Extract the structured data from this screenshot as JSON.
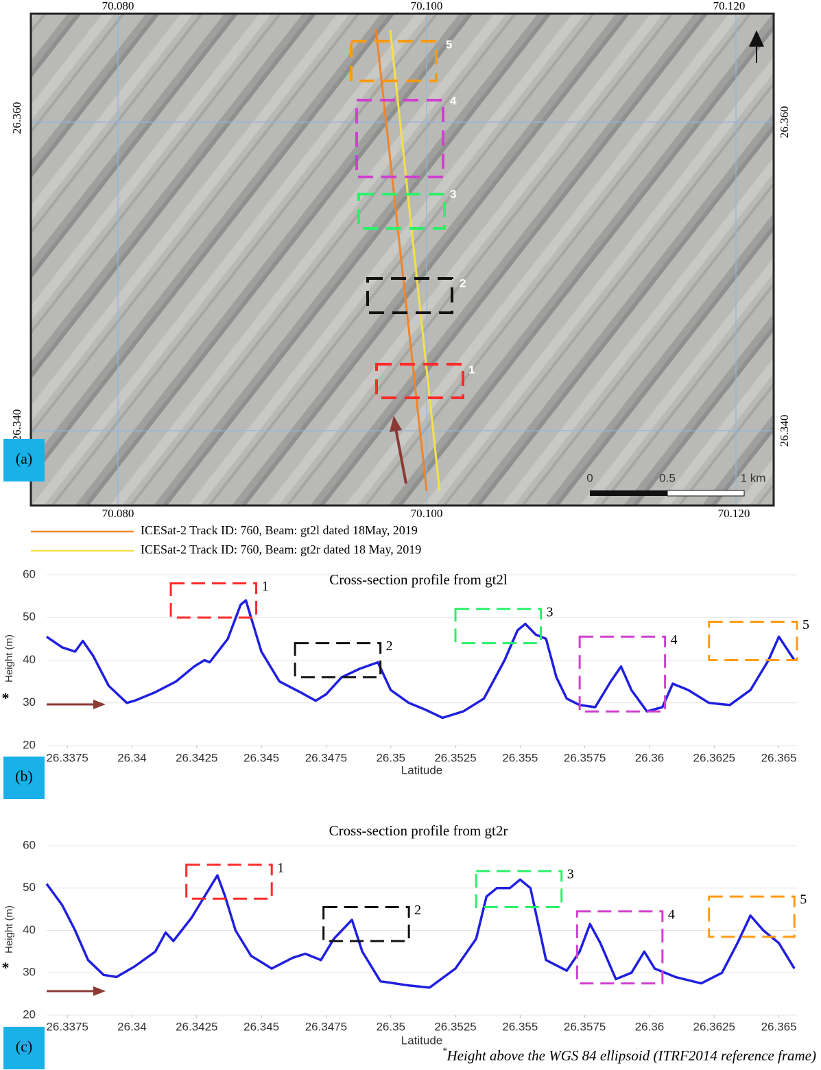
{
  "map": {
    "top_labels": [
      "70.080",
      "70.100",
      "70.120"
    ],
    "bottom_labels": [
      "70.080",
      "70.100",
      "70.120"
    ],
    "left_labels": [
      "26.360",
      "26.340"
    ],
    "right_labels": [
      "26.360",
      "26.340"
    ],
    "box_labels": [
      "5",
      "4",
      "3",
      "2",
      "1"
    ],
    "scale_labels": [
      "0",
      "0.5",
      "1 km"
    ],
    "panel_label": "(a)"
  },
  "legend": [
    {
      "name": "ICESat-2 Track ID: 760, Beam: gt2l dated 18May, 2019",
      "color": "#f0842a"
    },
    {
      "name": "ICESat-2 Track ID: 760, Beam: gt2r dated 18 May, 2019",
      "color": "#f5e04a"
    }
  ],
  "chart_data": [
    {
      "type": "line",
      "title": "Cross-section profile from gt2l",
      "panel_label": "(b)",
      "x_label": "Latitude",
      "y_label": "Height (m)",
      "y_label_mark": "*",
      "color": "#1f1fe0",
      "grid": true,
      "xlim": [
        26.3367,
        26.3657
      ],
      "ylim": [
        20,
        60
      ],
      "xticks": [
        26.3375,
        26.34,
        26.3425,
        26.345,
        26.3475,
        26.35,
        26.3525,
        26.355,
        26.3575,
        26.36,
        26.3625,
        26.365
      ],
      "yticks": [
        20,
        30,
        40,
        50,
        60
      ],
      "x": [
        26.3367,
        26.3373,
        26.3378,
        26.3381,
        26.3385,
        26.3391,
        26.3398,
        26.3401,
        26.3409,
        26.3417,
        26.3424,
        26.3428,
        26.343,
        26.3437,
        26.3442,
        26.3444,
        26.3446,
        26.345,
        26.3457,
        26.3465,
        26.3471,
        26.3475,
        26.3481,
        26.3488,
        26.3495,
        26.35,
        26.3507,
        26.3513,
        26.352,
        26.3528,
        26.3536,
        26.3544,
        26.3549,
        26.3552,
        26.3556,
        26.356,
        26.3564,
        26.3568,
        26.3573,
        26.3579,
        26.3585,
        26.3589,
        26.3593,
        26.3599,
        26.3605,
        26.3609,
        26.3615,
        26.3623,
        26.3631,
        26.3639,
        26.3646,
        26.365,
        26.3656
      ],
      "values": [
        45.5,
        43,
        42,
        44.5,
        41,
        34,
        30,
        30.5,
        32.5,
        35,
        38.5,
        40,
        39.5,
        45,
        53,
        54,
        50,
        42,
        35,
        32.5,
        30.5,
        32,
        36,
        38,
        39.5,
        33,
        30,
        28.5,
        26.5,
        28,
        31,
        40,
        47,
        48.5,
        46,
        45,
        36,
        31,
        29.5,
        29,
        35,
        38.5,
        33,
        28,
        29,
        34.5,
        33,
        30,
        29.5,
        33,
        40,
        45.5,
        40
      ],
      "boxes": [
        {
          "label": "1",
          "color": "#ff2a2a",
          "xlim": [
            26.3415,
            26.3448
          ],
          "ylim": [
            50,
            58
          ]
        },
        {
          "label": "2",
          "color": "#111111",
          "xlim": [
            26.3463,
            26.3496
          ],
          "ylim": [
            36,
            44
          ]
        },
        {
          "label": "3",
          "color": "#2af06a",
          "xlim": [
            26.3525,
            26.3558
          ],
          "ylim": [
            44,
            52
          ]
        },
        {
          "label": "4",
          "color": "#d040d0",
          "xlim": [
            26.3573,
            26.3606
          ],
          "ylim": [
            28,
            45.5
          ]
        },
        {
          "label": "5",
          "color": "#ff9a10",
          "xlim": [
            26.3623,
            26.3657
          ],
          "ylim": [
            40,
            49
          ]
        }
      ]
    },
    {
      "type": "line",
      "title": "Cross-section profile from gt2r",
      "panel_label": "(c)",
      "x_label": "Latitude",
      "y_label": "Height (m)",
      "y_label_mark": "*",
      "color": "#1f1fe0",
      "grid": true,
      "xlim": [
        26.3367,
        26.3657
      ],
      "ylim": [
        20,
        60
      ],
      "xticks": [
        26.3375,
        26.34,
        26.3425,
        26.345,
        26.3475,
        26.35,
        26.3525,
        26.355,
        26.3575,
        26.36,
        26.3625,
        26.365
      ],
      "yticks": [
        20,
        30,
        40,
        50,
        60
      ],
      "x": [
        26.3367,
        26.3373,
        26.3378,
        26.3383,
        26.3389,
        26.3394,
        26.3401,
        26.3409,
        26.3413,
        26.3416,
        26.3423,
        26.3428,
        26.3433,
        26.3436,
        26.344,
        26.3446,
        26.3454,
        26.3462,
        26.3467,
        26.3473,
        26.3478,
        26.3485,
        26.3489,
        26.3496,
        26.3507,
        26.3515,
        26.3525,
        26.3533,
        26.3537,
        26.3541,
        26.3546,
        26.355,
        26.3554,
        26.356,
        26.3568,
        26.3573,
        26.3577,
        26.3581,
        26.3587,
        26.3593,
        26.3598,
        26.3602,
        26.361,
        26.362,
        26.3628,
        26.3634,
        26.3639,
        26.3644,
        26.365,
        26.3656
      ],
      "values": [
        51,
        46,
        40,
        33,
        29.5,
        29,
        31.5,
        35,
        39.5,
        37.5,
        43,
        48,
        53,
        48,
        40,
        34,
        31,
        33.5,
        34.5,
        33,
        38,
        42.5,
        35,
        28,
        27,
        26.5,
        31,
        38,
        48,
        50,
        50,
        52,
        50,
        33,
        30.5,
        35,
        41.5,
        37,
        28.5,
        30,
        35,
        31,
        29,
        27.5,
        30,
        37,
        43.5,
        40,
        37,
        31
      ],
      "boxes": [
        {
          "label": "1",
          "color": "#ff2a2a",
          "xlim": [
            26.3421,
            26.3454
          ],
          "ylim": [
            47.5,
            55.5
          ]
        },
        {
          "label": "2",
          "color": "#111111",
          "xlim": [
            26.3474,
            26.3507
          ],
          "ylim": [
            37.5,
            45.5
          ]
        },
        {
          "label": "3",
          "color": "#2af06a",
          "xlim": [
            26.3533,
            26.3566
          ],
          "ylim": [
            45.5,
            54
          ]
        },
        {
          "label": "4",
          "color": "#d040d0",
          "xlim": [
            26.3572,
            26.3605
          ],
          "ylim": [
            27.5,
            44.5
          ]
        },
        {
          "label": "5",
          "color": "#ff9a10",
          "xlim": [
            26.3623,
            26.3656
          ],
          "ylim": [
            38.5,
            48
          ]
        }
      ]
    }
  ],
  "footnote": {
    "mark": "*",
    "text": "Height above the WGS 84 ellipsoid (ITRF2014 reference frame)"
  }
}
